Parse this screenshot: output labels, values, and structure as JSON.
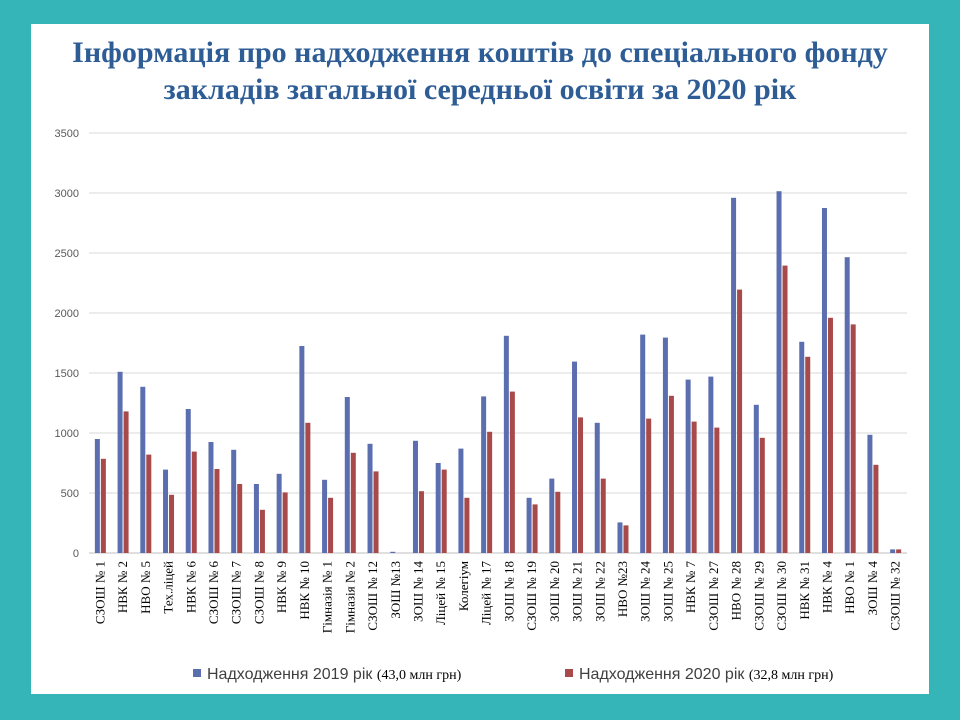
{
  "title": [
    "Інформація про надходження коштів до спеціального фонду",
    "закладів загальної середньої освіти за 2020 рік"
  ],
  "colors": {
    "background": "#36b5b8",
    "title": "#2e5d95",
    "series2019": "#5b6fb0",
    "series2020": "#a84a4a",
    "grid": "#d9d9d9"
  },
  "chart_data": {
    "type": "bar",
    "title": "Інформація про надходження коштів до спеціального фонду закладів загальної середньої освіти за 2020 рік",
    "xlabel": "",
    "ylabel": "",
    "ylim": [
      0,
      3500
    ],
    "yticks": [
      "0",
      "500",
      "1000",
      "1500",
      "2000",
      "2500",
      "3000",
      "3500"
    ],
    "grid": true,
    "legend_position": "bottom",
    "categories": [
      "СЗОШ № 1",
      "НВК № 2",
      "НВО № 5",
      "Тех.ліцей",
      "НВК № 6",
      "СЗОШ № 6",
      "СЗОШ № 7",
      "СЗОШ № 8",
      "НВК № 9",
      "НВК № 10",
      "Гімназія № 1",
      "Гімназія № 2",
      "СЗОШ № 12",
      "ЗОШ №13",
      "ЗОШ № 14",
      "Ліцей № 15",
      "Колегіум",
      "Ліцей № 17",
      "ЗОШ № 18",
      "СЗОШ № 19",
      "ЗОШ № 20",
      "ЗОШ № 21",
      "ЗОШ № 22",
      "НВО №23",
      "ЗОШ № 24",
      "ЗОШ № 25",
      "НВК № 7",
      "СЗОШ № 27",
      "НВО № 28",
      "СЗОШ № 29",
      "СЗОШ № 30",
      "НВК № 31",
      "НВК № 4",
      "НВО № 1",
      "ЗОШ № 4",
      "СЗОШ № 32"
    ],
    "series": [
      {
        "name": "Надходження 2019 рік",
        "note": "(43,0 млн грн)",
        "values": [
          950,
          1510,
          1385,
          695,
          1200,
          925,
          860,
          575,
          660,
          1725,
          610,
          1300,
          910,
          10,
          935,
          750,
          870,
          1305,
          1810,
          460,
          620,
          1595,
          1085,
          255,
          1820,
          1795,
          1445,
          1470,
          2960,
          1235,
          3015,
          1760,
          2875,
          2465,
          985,
          30
        ]
      },
      {
        "name": "Надходження 2020 рік",
        "note": "(32,8 млн грн)",
        "values": [
          785,
          1180,
          820,
          485,
          845,
          700,
          575,
          360,
          505,
          1085,
          460,
          835,
          680,
          0,
          515,
          695,
          460,
          1010,
          1345,
          405,
          510,
          1130,
          620,
          230,
          1120,
          1310,
          1095,
          1045,
          2195,
          960,
          2395,
          1635,
          1960,
          1905,
          735,
          30
        ]
      }
    ]
  }
}
